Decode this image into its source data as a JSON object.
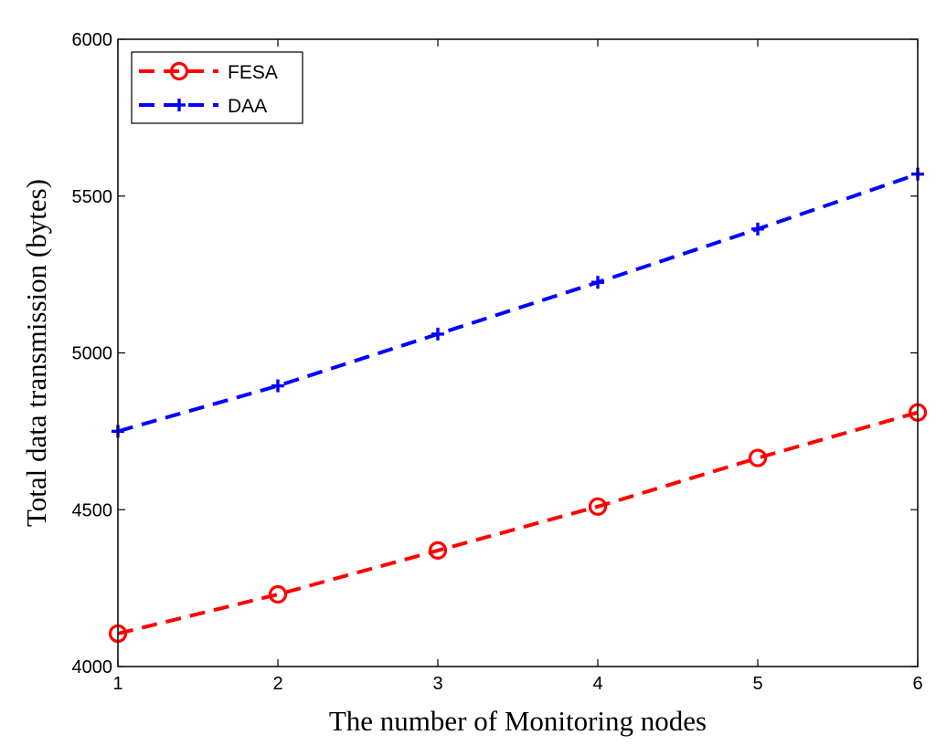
{
  "chart_data": {
    "type": "line",
    "xlabel": "The number of Monitoring nodes",
    "ylabel": "Total data transmission (bytes)",
    "xlim": [
      1,
      6
    ],
    "ylim": [
      4000,
      6000
    ],
    "xticks": [
      1,
      2,
      3,
      4,
      5,
      6
    ],
    "yticks": [
      4000,
      4500,
      5000,
      5500,
      6000
    ],
    "grid": false,
    "legend_position": "top-left",
    "series": [
      {
        "name": "FESA",
        "color": "#ff0000",
        "marker": "circle",
        "line_style": "dashed",
        "x": [
          1,
          2,
          3,
          4,
          5,
          6
        ],
        "y": [
          4105,
          4230,
          4370,
          4510,
          4665,
          4810
        ]
      },
      {
        "name": "DAA",
        "color": "#0000ff",
        "marker": "plus",
        "line_style": "dashed",
        "x": [
          1,
          2,
          3,
          4,
          5,
          6
        ],
        "y": [
          4750,
          4895,
          5060,
          5225,
          5395,
          5570
        ]
      }
    ]
  }
}
